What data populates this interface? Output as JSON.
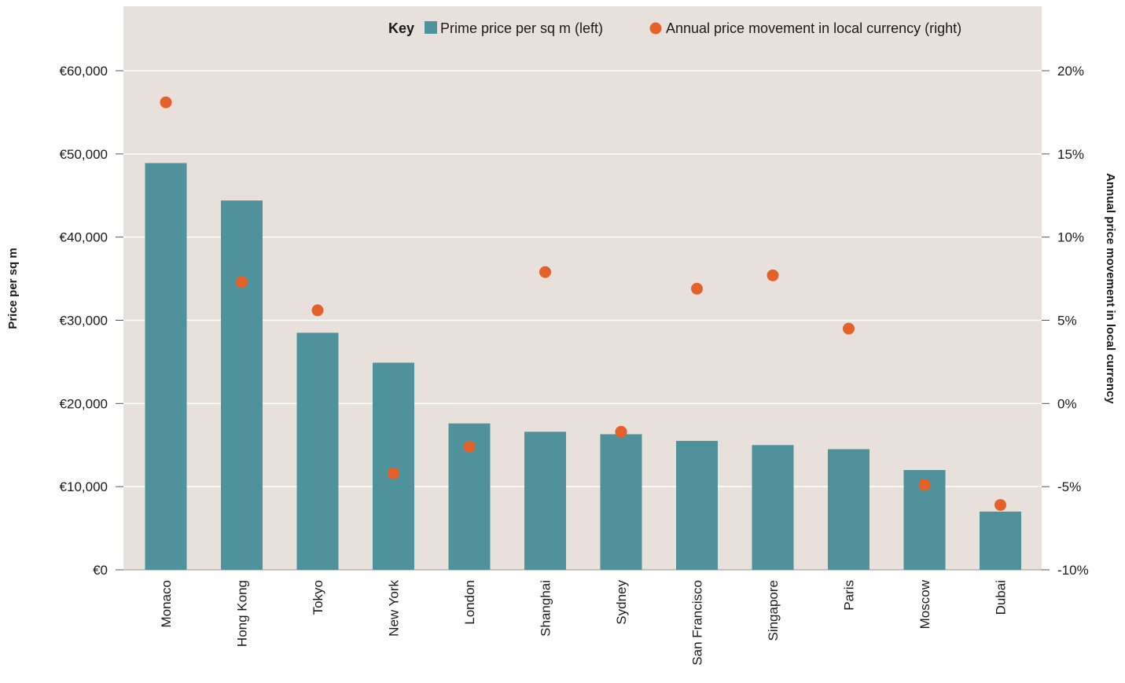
{
  "chart_data": {
    "type": "bar",
    "categories": [
      "Monaco",
      "Hong Kong",
      "Tokyo",
      "New York",
      "London",
      "Shanghai",
      "Sydney",
      "San Francisco",
      "Singapore",
      "Paris",
      "Moscow",
      "Dubai"
    ],
    "series": [
      {
        "name": "Prime price per sq m (left)",
        "type": "bar",
        "axis": "left",
        "color": "#50929b",
        "values": [
          48900,
          44400,
          28500,
          24900,
          17600,
          16600,
          16300,
          15500,
          15000,
          14500,
          12000,
          7000
        ]
      },
      {
        "name": "Annual price movement in local currency (right)",
        "type": "scatter",
        "axis": "right",
        "color": "#e4622a",
        "values": [
          18.1,
          7.3,
          5.6,
          -4.2,
          -2.6,
          7.9,
          -1.7,
          6.9,
          7.7,
          4.5,
          -4.9,
          -6.1
        ]
      }
    ],
    "y_left": {
      "label": "Price per sq m",
      "ylim": [
        0,
        60000
      ],
      "ticks": [
        "€0",
        "€10,000",
        "€20,000",
        "€30,000",
        "€40,000",
        "€50,000",
        "€60,000"
      ]
    },
    "y_right": {
      "label": "Annual price movement in local currency",
      "ylim": [
        -10,
        20
      ],
      "ticks": [
        "-10%",
        "-5%",
        "0%",
        "5%",
        "10%",
        "15%",
        "20%"
      ]
    },
    "legend": {
      "title": "Key",
      "placement": "top-right"
    },
    "grid": true,
    "background": "#e8e0da"
  }
}
